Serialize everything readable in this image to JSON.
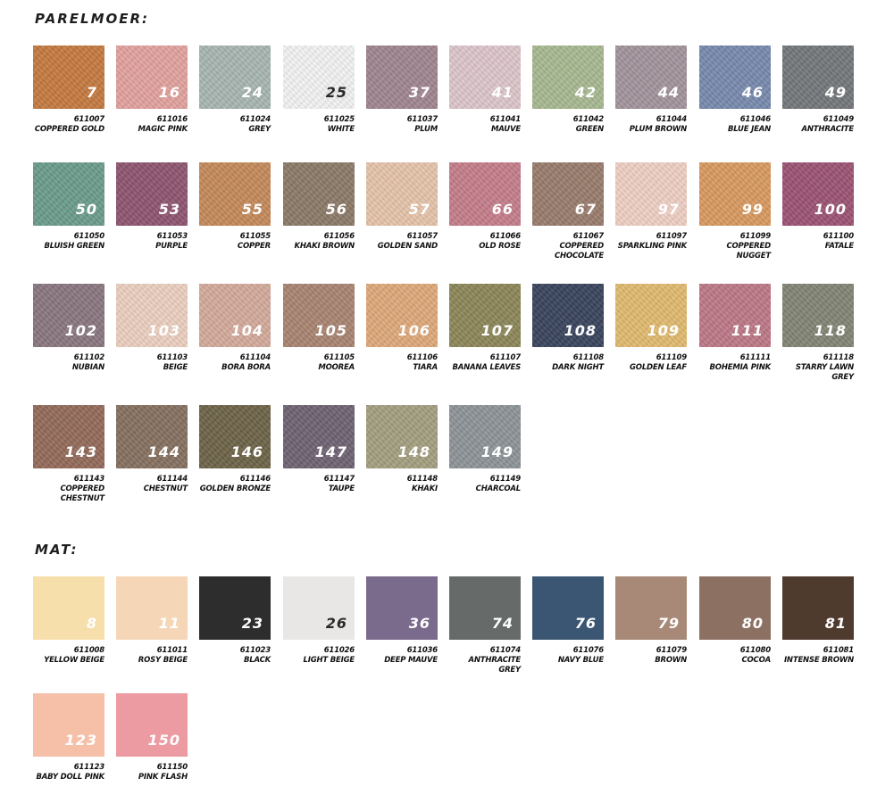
{
  "sections": [
    {
      "title": "PARELMOER:",
      "swatches": [
        {
          "num": "7",
          "code": "611007",
          "name": "COPPERED GOLD",
          "color": "#c57a3f"
        },
        {
          "num": "16",
          "code": "611016",
          "name": "MAGIC PINK",
          "color": "#e3a29e"
        },
        {
          "num": "24",
          "code": "611024",
          "name": "GREY",
          "color": "#a8b6b2"
        },
        {
          "num": "25",
          "code": "611025",
          "name": "WHITE",
          "color": "#f3f3f3"
        },
        {
          "num": "37",
          "code": "611037",
          "name": "PLUM",
          "color": "#a08591"
        },
        {
          "num": "41",
          "code": "611041",
          "name": "MAUVE",
          "color": "#ddc6cb"
        },
        {
          "num": "42",
          "code": "611042",
          "name": "GREEN",
          "color": "#a8b991"
        },
        {
          "num": "44",
          "code": "611044",
          "name": "PLUM BROWN",
          "color": "#a3949c"
        },
        {
          "num": "46",
          "code": "611046",
          "name": "BLUE JEAN",
          "color": "#7789ae"
        },
        {
          "num": "49",
          "code": "611049",
          "name": "ANTHRACITE",
          "color": "#74777a"
        },
        {
          "num": "50",
          "code": "611050",
          "name": "BLUISH GREEN",
          "color": "#6b9c8c"
        },
        {
          "num": "53",
          "code": "611053",
          "name": "PURPLE",
          "color": "#8e5570"
        },
        {
          "num": "55",
          "code": "611055",
          "name": "COPPER",
          "color": "#c5895a"
        },
        {
          "num": "56",
          "code": "611056",
          "name": "KHAKI BROWN",
          "color": "#8b7a68"
        },
        {
          "num": "57",
          "code": "611057",
          "name": "GOLDEN SAND",
          "color": "#e6c4ab"
        },
        {
          "num": "66",
          "code": "611066",
          "name": "OLD ROSE",
          "color": "#c47d8a"
        },
        {
          "num": "67",
          "code": "611067",
          "name": "COPPERED CHOCOLATE",
          "color": "#997c6c"
        },
        {
          "num": "97",
          "code": "611097",
          "name": "SPARKLING PINK",
          "color": "#efd0c4"
        },
        {
          "num": "99",
          "code": "611099",
          "name": "COPPERED NUGGET",
          "color": "#d99a60"
        },
        {
          "num": "100",
          "code": "611100",
          "name": "FATALE",
          "color": "#9b5373"
        },
        {
          "num": "102",
          "code": "611102",
          "name": "NUBIAN",
          "color": "#8a7680"
        },
        {
          "num": "103",
          "code": "611103",
          "name": "BEIGE",
          "color": "#ecd0c0"
        },
        {
          "num": "104",
          "code": "611104",
          "name": "BORA BORA",
          "color": "#d4ab9b"
        },
        {
          "num": "105",
          "code": "611105",
          "name": "MOOREA",
          "color": "#a98471"
        },
        {
          "num": "106",
          "code": "611106",
          "name": "TIARA",
          "color": "#dfa97a"
        },
        {
          "num": "107",
          "code": "611107",
          "name": "BANANA LEAVES",
          "color": "#8c8658"
        },
        {
          "num": "108",
          "code": "611108",
          "name": "DARK NIGHT",
          "color": "#38435c"
        },
        {
          "num": "109",
          "code": "611109",
          "name": "GOLDEN LEAF",
          "color": "#e1bb6f"
        },
        {
          "num": "111",
          "code": "611111",
          "name": "BOHEMIA PINK",
          "color": "#bd7886"
        },
        {
          "num": "118",
          "code": "611118",
          "name": "STARRY LAWN GREY",
          "color": "#828574"
        },
        {
          "num": "143",
          "code": "611143",
          "name": "COPPERED CHESTNUT",
          "color": "#936a58"
        },
        {
          "num": "144",
          "code": "611144",
          "name": "CHESTNUT",
          "color": "#86705f"
        },
        {
          "num": "146",
          "code": "611146",
          "name": "GOLDEN BRONZE",
          "color": "#6d6347"
        },
        {
          "num": "147",
          "code": "611147",
          "name": "TAUPE",
          "color": "#6e6272"
        },
        {
          "num": "148",
          "code": "611148",
          "name": "KHAKI",
          "color": "#a39f80"
        },
        {
          "num": "149",
          "code": "611149",
          "name": "CHARCOAL",
          "color": "#8d9497"
        }
      ]
    },
    {
      "title": "MAT:",
      "swatches": [
        {
          "num": "8",
          "code": "611008",
          "name": "YELLOW BEIGE",
          "color": "#f7dfac"
        },
        {
          "num": "11",
          "code": "611011",
          "name": "ROSY BEIGE",
          "color": "#f5d7b8"
        },
        {
          "num": "23",
          "code": "611023",
          "name": "BLACK",
          "color": "#2d2d2d"
        },
        {
          "num": "26",
          "code": "611026",
          "name": "LIGHT BEIGE",
          "color": "#e9e6e6"
        },
        {
          "num": "36",
          "code": "611036",
          "name": "DEEP MAUVE",
          "color": "#7a6a8c"
        },
        {
          "num": "74",
          "code": "611074",
          "name": "ANTHRACITE GREY",
          "color": "#666b6a"
        },
        {
          "num": "76",
          "code": "611076",
          "name": "NAVY BLUE",
          "color": "#3b5672"
        },
        {
          "num": "79",
          "code": "611079",
          "name": "BROWN",
          "color": "#a88977"
        },
        {
          "num": "80",
          "code": "611080",
          "name": "COCOA",
          "color": "#8c7163"
        },
        {
          "num": "81",
          "code": "611081",
          "name": "INTENSE BROWN",
          "color": "#4f3a2e"
        },
        {
          "num": "123",
          "code": "611123",
          "name": "BABY DOLL PINK",
          "color": "#f6c0a8"
        },
        {
          "num": "150",
          "code": "611150",
          "name": "PINK FLASH",
          "color": "#eb9ba1"
        }
      ]
    }
  ]
}
